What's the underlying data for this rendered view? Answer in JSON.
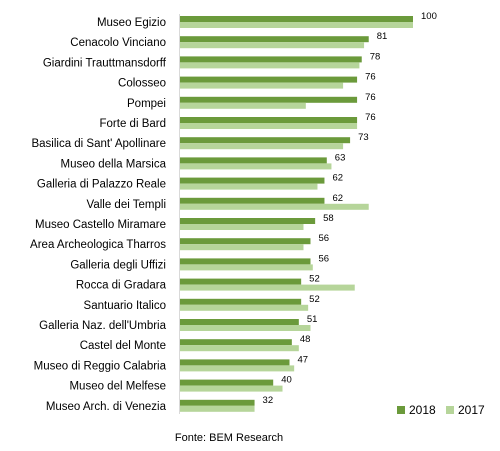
{
  "chart_data": {
    "type": "bar",
    "orientation": "horizontal",
    "categories": [
      "Museo Egizio",
      "Cenacolo Vinciano",
      "Giardini Trauttmansdorff",
      "Colosseo",
      "Pompei",
      "Forte di Bard",
      "Basilica di Sant' Apollinare",
      "Museo della Marsica",
      "Galleria di Palazzo Reale",
      "Valle dei Templi",
      "Museo Castello Miramare",
      "Area Archeologica Tharros",
      "Galleria degli Uffizi",
      "Rocca di Gradara",
      "Santuario Italico",
      "Galleria Naz. dell'Umbria",
      "Castel del Monte",
      "Museo di Reggio Calabria",
      "Museo del Melfese",
      "Museo Arch. di Venezia"
    ],
    "series": [
      {
        "name": "2018",
        "color": "#6b9a3b",
        "values": [
          100,
          81,
          78,
          76,
          76,
          76,
          73,
          63,
          62,
          62,
          58,
          56,
          56,
          52,
          52,
          51,
          48,
          47,
          40,
          32
        ]
      },
      {
        "name": "2017",
        "color": "#b6d59a",
        "values": [
          100,
          79,
          77,
          70,
          54,
          76,
          70,
          65,
          59,
          81,
          53,
          53,
          57,
          75,
          55,
          56,
          51,
          49,
          44,
          32
        ]
      }
    ],
    "data_labels_series": "2018",
    "xlim": [
      0,
      100
    ],
    "grid": false,
    "legend_position": "bottom-right",
    "source": "Fonte: BEM Research"
  }
}
